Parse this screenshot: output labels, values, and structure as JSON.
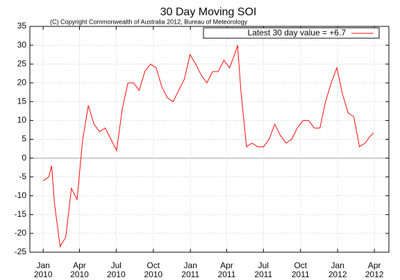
{
  "chart_data": {
    "type": "line",
    "title": "30 Day Moving SOI",
    "subtitle": "(C) Copyright Commonwealth of Australia 2012, Bureau of Meteorology",
    "x": [
      "2010-01-01",
      "2010-01-15",
      "2010-01-22",
      "2010-01-29",
      "2010-02-12",
      "2010-02-26",
      "2010-03-12",
      "2010-03-26",
      "2010-04-09",
      "2010-04-23",
      "2010-05-07",
      "2010-05-21",
      "2010-06-04",
      "2010-06-18",
      "2010-07-02",
      "2010-07-16",
      "2010-07-30",
      "2010-08-13",
      "2010-08-27",
      "2010-09-10",
      "2010-09-24",
      "2010-10-08",
      "2010-10-22",
      "2010-11-05",
      "2010-11-19",
      "2010-12-03",
      "2010-12-17",
      "2010-12-31",
      "2011-01-14",
      "2011-01-28",
      "2011-02-11",
      "2011-02-25",
      "2011-03-11",
      "2011-03-25",
      "2011-04-08",
      "2011-04-22",
      "2011-04-28",
      "2011-05-06",
      "2011-05-20",
      "2011-06-03",
      "2011-06-17",
      "2011-07-01",
      "2011-07-15",
      "2011-07-29",
      "2011-08-12",
      "2011-08-26",
      "2011-09-09",
      "2011-09-23",
      "2011-10-07",
      "2011-10-21",
      "2011-11-04",
      "2011-11-18",
      "2011-12-02",
      "2011-12-16",
      "2011-12-30",
      "2012-01-13",
      "2012-01-27",
      "2012-02-10",
      "2012-02-24",
      "2012-03-09",
      "2012-03-23",
      "2012-03-30"
    ],
    "series": [
      {
        "name": "Latest 30 day value = +6.7",
        "color": "#ff0000",
        "values": [
          -6,
          -5,
          -2,
          -12,
          -23.5,
          -21,
          -8,
          -11,
          5,
          14,
          9,
          7,
          8,
          5,
          2,
          13,
          20,
          20,
          18,
          23,
          25,
          24,
          19,
          16,
          15,
          18,
          21,
          27.5,
          25,
          22,
          20,
          23,
          23,
          26,
          24,
          28,
          30,
          18,
          3,
          4,
          3,
          3,
          5,
          9,
          6,
          4,
          5,
          8,
          10,
          10,
          8,
          8,
          15,
          20,
          24,
          17,
          12,
          11,
          3,
          4,
          6,
          6.7
        ]
      }
    ],
    "xlim": [
      "2009-11-29",
      "2012-05-07"
    ],
    "xticks": [
      {
        "value": "2010-01-01",
        "label": "Jan 2010"
      },
      {
        "value": "2010-04-01",
        "label": "Apr 2010"
      },
      {
        "value": "2010-07-01",
        "label": "Jul 2010"
      },
      {
        "value": "2010-10-01",
        "label": "Oct 2010"
      },
      {
        "value": "2011-01-01",
        "label": "Jan 2011"
      },
      {
        "value": "2011-04-01",
        "label": "Apr 2011"
      },
      {
        "value": "2011-07-01",
        "label": "Jul 2011"
      },
      {
        "value": "2011-10-01",
        "label": "Oct 2011"
      },
      {
        "value": "2012-01-01",
        "label": "Jan 2012"
      },
      {
        "value": "2012-04-01",
        "label": "Apr 2012"
      }
    ],
    "ylim": [
      -25,
      35
    ],
    "yticks": [
      -25,
      -20,
      -15,
      -10,
      -5,
      0,
      5,
      10,
      15,
      20,
      25,
      30,
      35
    ],
    "grid": true,
    "legend": "upper right"
  }
}
